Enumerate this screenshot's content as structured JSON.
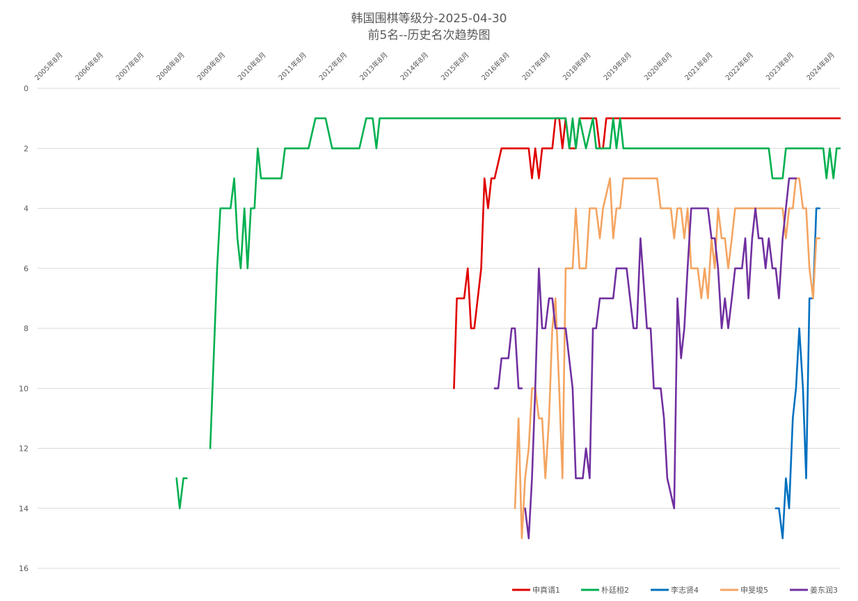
{
  "chart_data": {
    "type": "line",
    "title": "韩国围棋等级分-2025-04-30",
    "subtitle": "前5名--历史名次趋势图",
    "x_axis_position": "top",
    "x_tick_labels": [
      "2005年8月",
      "2006年8月",
      "2007年8月",
      "2008年8月",
      "2009年8月",
      "2010年8月",
      "2011年8月",
      "2012年8月",
      "2013年8月",
      "2014年8月",
      "2015年8月",
      "2016年8月",
      "2017年8月",
      "2018年8月",
      "2019年8月",
      "2020年8月",
      "2021年8月",
      "2022年8月",
      "2023年8月",
      "2024年8月"
    ],
    "x_range": [
      2005.58,
      2025.33
    ],
    "y_axis": {
      "reversed": true,
      "min": 0,
      "max": 16,
      "ticks": [
        0,
        2,
        4,
        6,
        8,
        10,
        12,
        14,
        16
      ]
    },
    "grid": true,
    "legend_position": "bottom-right",
    "series": [
      {
        "name": "申真谞1",
        "color": "#e00000",
        "points": [
          [
            2015.83,
            10
          ],
          [
            2015.9,
            7
          ],
          [
            2016.08,
            7
          ],
          [
            2016.17,
            6
          ],
          [
            2016.25,
            8
          ],
          [
            2016.33,
            8
          ],
          [
            2016.5,
            6
          ],
          [
            2016.58,
            3
          ],
          [
            2016.67,
            4
          ],
          [
            2016.75,
            3
          ],
          [
            2016.83,
            3
          ],
          [
            2017.0,
            2
          ],
          [
            2017.67,
            2
          ],
          [
            2017.75,
            3
          ],
          [
            2017.83,
            2
          ],
          [
            2017.92,
            3
          ],
          [
            2018.0,
            2
          ],
          [
            2018.25,
            2
          ],
          [
            2018.33,
            1
          ],
          [
            2018.42,
            1
          ],
          [
            2018.5,
            2
          ],
          [
            2018.58,
            1
          ],
          [
            2018.67,
            2
          ],
          [
            2018.83,
            2
          ],
          [
            2018.92,
            1
          ],
          [
            2019.33,
            1
          ],
          [
            2019.42,
            2
          ],
          [
            2019.5,
            2
          ],
          [
            2019.58,
            1
          ],
          [
            2025.33,
            1
          ]
        ]
      },
      {
        "name": "朴廷桓2",
        "color": "#00b050",
        "points": [
          [
            2009.0,
            13
          ],
          [
            2009.08,
            14
          ],
          [
            2009.17,
            13
          ],
          [
            2009.25,
            13
          ],
          null,
          [
            2009.83,
            12
          ],
          [
            2010.0,
            6
          ],
          [
            2010.08,
            4
          ],
          [
            2010.33,
            4
          ],
          [
            2010.42,
            3
          ],
          [
            2010.5,
            5
          ],
          [
            2010.58,
            6
          ],
          [
            2010.67,
            4
          ],
          [
            2010.75,
            6
          ],
          [
            2010.83,
            4
          ],
          [
            2010.92,
            4
          ],
          [
            2011.0,
            2
          ],
          [
            2011.08,
            3
          ],
          [
            2011.58,
            3
          ],
          [
            2011.67,
            2
          ],
          [
            2012.25,
            2
          ],
          [
            2012.42,
            1
          ],
          [
            2012.67,
            1
          ],
          [
            2012.83,
            2
          ],
          [
            2013.5,
            2
          ],
          [
            2013.67,
            1
          ],
          [
            2013.83,
            1
          ],
          [
            2013.92,
            2
          ],
          [
            2014.0,
            1
          ],
          [
            2018.58,
            1
          ],
          [
            2018.67,
            2
          ],
          [
            2018.75,
            1
          ],
          [
            2018.83,
            2
          ],
          [
            2018.92,
            1
          ],
          [
            2019.08,
            2
          ],
          [
            2019.25,
            1
          ],
          [
            2019.33,
            2
          ],
          [
            2019.67,
            2
          ],
          [
            2019.75,
            1
          ],
          [
            2019.83,
            2
          ],
          [
            2019.92,
            1
          ],
          [
            2020.0,
            2
          ],
          [
            2023.58,
            2
          ],
          [
            2023.67,
            3
          ],
          [
            2023.92,
            3
          ],
          [
            2024.0,
            2
          ],
          [
            2024.92,
            2
          ],
          [
            2025.0,
            3
          ],
          [
            2025.08,
            2
          ],
          [
            2025.17,
            3
          ],
          [
            2025.25,
            2
          ],
          [
            2025.33,
            2
          ]
        ]
      },
      {
        "name": "李志贤4",
        "color": "#0070c0",
        "points": [
          [
            2023.75,
            14
          ],
          [
            2023.83,
            14
          ],
          [
            2023.92,
            15
          ],
          [
            2024.0,
            13
          ],
          [
            2024.08,
            14
          ],
          [
            2024.17,
            11
          ],
          [
            2024.25,
            10
          ],
          [
            2024.33,
            8
          ],
          [
            2024.42,
            10
          ],
          [
            2024.5,
            13
          ],
          [
            2024.58,
            7
          ],
          [
            2024.67,
            7
          ],
          [
            2024.75,
            4
          ],
          [
            2024.83,
            4
          ]
        ]
      },
      {
        "name": "申旻埈5",
        "color": "#f4a460",
        "points": [
          [
            2017.33,
            14
          ],
          [
            2017.42,
            11
          ],
          [
            2017.5,
            15
          ],
          [
            2017.58,
            13
          ],
          [
            2017.67,
            12
          ],
          [
            2017.75,
            10
          ],
          [
            2017.83,
            10
          ],
          [
            2017.92,
            11
          ],
          [
            2018.0,
            11
          ],
          [
            2018.08,
            13
          ],
          [
            2018.17,
            11
          ],
          [
            2018.25,
            8
          ],
          [
            2018.33,
            7
          ],
          [
            2018.42,
            10
          ],
          [
            2018.5,
            13
          ],
          [
            2018.58,
            6
          ],
          [
            2018.75,
            6
          ],
          [
            2018.83,
            4
          ],
          [
            2018.92,
            6
          ],
          [
            2019.08,
            6
          ],
          [
            2019.17,
            4
          ],
          [
            2019.33,
            4
          ],
          [
            2019.42,
            5
          ],
          [
            2019.5,
            4
          ],
          [
            2019.67,
            3
          ],
          [
            2019.75,
            5
          ],
          [
            2019.83,
            4
          ],
          [
            2019.92,
            4
          ],
          [
            2020.0,
            3
          ],
          [
            2020.83,
            3
          ],
          [
            2020.92,
            4
          ],
          [
            2021.17,
            4
          ],
          [
            2021.25,
            5
          ],
          [
            2021.33,
            4
          ],
          [
            2021.42,
            4
          ],
          [
            2021.5,
            5
          ],
          [
            2021.58,
            4
          ],
          [
            2021.67,
            6
          ],
          [
            2021.83,
            6
          ],
          [
            2021.92,
            7
          ],
          [
            2022.0,
            6
          ],
          [
            2022.08,
            7
          ],
          [
            2022.17,
            5
          ],
          [
            2022.25,
            6
          ],
          [
            2022.33,
            4
          ],
          [
            2022.42,
            5
          ],
          [
            2022.5,
            5
          ],
          [
            2022.58,
            6
          ],
          [
            2022.67,
            5
          ],
          [
            2022.75,
            4
          ],
          [
            2022.83,
            4
          ],
          [
            2023.92,
            4
          ],
          [
            2024.0,
            5
          ],
          [
            2024.08,
            4
          ],
          [
            2024.17,
            4
          ],
          [
            2024.25,
            3
          ],
          [
            2024.33,
            3
          ],
          [
            2024.42,
            4
          ],
          [
            2024.5,
            4
          ],
          [
            2024.58,
            6
          ],
          [
            2024.67,
            7
          ],
          [
            2024.75,
            5
          ],
          [
            2024.83,
            5
          ]
        ]
      },
      {
        "name": "姜东润3",
        "color": "#7030a0",
        "points": [
          [
            2016.83,
            10
          ],
          [
            2016.92,
            10
          ],
          [
            2017.0,
            9
          ],
          [
            2017.17,
            9
          ],
          [
            2017.25,
            8
          ],
          [
            2017.33,
            8
          ],
          [
            2017.42,
            10
          ],
          [
            2017.5,
            10
          ],
          null,
          [
            2017.58,
            14
          ],
          [
            2017.67,
            15
          ],
          [
            2017.75,
            13
          ],
          [
            2017.83,
            10
          ],
          [
            2017.92,
            6
          ],
          [
            2018.0,
            8
          ],
          [
            2018.08,
            8
          ],
          [
            2018.17,
            7
          ],
          [
            2018.25,
            7
          ],
          [
            2018.33,
            8
          ],
          [
            2018.5,
            8
          ],
          [
            2018.58,
            8
          ],
          [
            2018.75,
            10
          ],
          [
            2018.83,
            13
          ],
          [
            2018.92,
            13
          ],
          [
            2019.0,
            13
          ],
          [
            2019.08,
            12
          ],
          [
            2019.17,
            13
          ],
          [
            2019.25,
            8
          ],
          [
            2019.33,
            8
          ],
          [
            2019.42,
            7
          ],
          [
            2019.5,
            7
          ],
          [
            2019.75,
            7
          ],
          [
            2019.83,
            6
          ],
          [
            2020.0,
            6
          ],
          [
            2020.08,
            6
          ],
          [
            2020.25,
            8
          ],
          [
            2020.33,
            8
          ],
          [
            2020.42,
            5
          ],
          [
            2020.58,
            8
          ],
          [
            2020.67,
            8
          ],
          [
            2020.75,
            10
          ],
          [
            2020.92,
            10
          ],
          [
            2021.0,
            11
          ],
          [
            2021.08,
            13
          ],
          [
            2021.25,
            14
          ],
          [
            2021.33,
            7
          ],
          [
            2021.42,
            9
          ],
          [
            2021.5,
            8
          ],
          [
            2021.58,
            6
          ],
          [
            2021.67,
            4
          ],
          [
            2022.0,
            4
          ],
          [
            2022.08,
            4
          ],
          [
            2022.17,
            5
          ],
          [
            2022.25,
            5
          ],
          [
            2022.33,
            6
          ],
          [
            2022.42,
            8
          ],
          [
            2022.5,
            7
          ],
          [
            2022.58,
            8
          ],
          [
            2022.67,
            7
          ],
          [
            2022.75,
            6
          ],
          [
            2022.92,
            6
          ],
          [
            2023.0,
            5
          ],
          [
            2023.08,
            7
          ],
          [
            2023.17,
            5
          ],
          [
            2023.25,
            4
          ],
          [
            2023.33,
            5
          ],
          [
            2023.42,
            5
          ],
          [
            2023.5,
            6
          ],
          [
            2023.58,
            5
          ],
          [
            2023.67,
            6
          ],
          [
            2023.75,
            6
          ],
          [
            2023.83,
            7
          ],
          [
            2023.92,
            5
          ],
          [
            2024.0,
            4
          ],
          [
            2024.08,
            3
          ],
          [
            2024.17,
            3
          ],
          [
            2024.25,
            3
          ]
        ]
      }
    ]
  }
}
